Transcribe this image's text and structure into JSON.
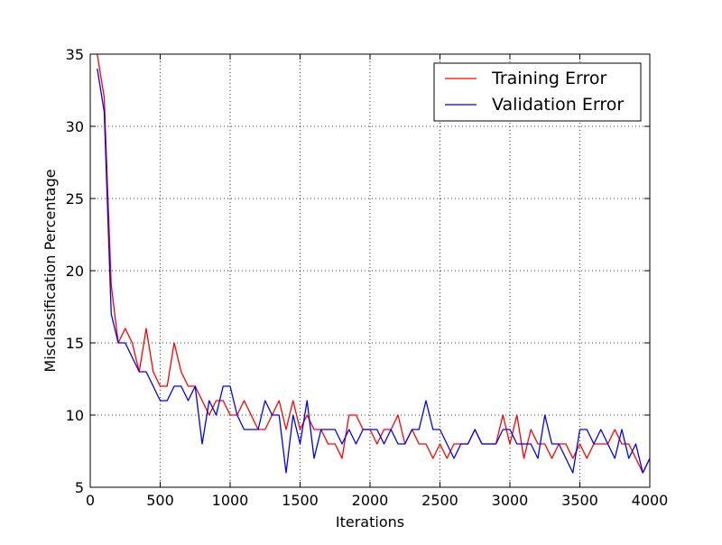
{
  "chart_data": {
    "type": "line",
    "title": "",
    "xlabel": "Iterations",
    "ylabel": "Misclassification Percentage",
    "xlim": [
      0,
      4000
    ],
    "ylim": [
      5,
      35
    ],
    "xticks": [
      "0",
      "500",
      "1000",
      "1500",
      "2000",
      "2500",
      "3000",
      "3500",
      "4000"
    ],
    "yticks": [
      "5",
      "10",
      "15",
      "20",
      "25",
      "30",
      "35"
    ],
    "xtick_values": [
      0,
      500,
      1000,
      1500,
      2000,
      2500,
      3000,
      3500,
      4000
    ],
    "ytick_values": [
      5,
      10,
      15,
      20,
      25,
      30,
      35
    ],
    "grid": true,
    "legend": {
      "position": "top-right",
      "entries": [
        "Training Error",
        "Validation Error"
      ]
    },
    "x": [
      50,
      100,
      150,
      200,
      250,
      300,
      350,
      400,
      450,
      500,
      550,
      600,
      650,
      700,
      750,
      800,
      850,
      900,
      950,
      1000,
      1050,
      1100,
      1150,
      1200,
      1250,
      1300,
      1350,
      1400,
      1450,
      1500,
      1550,
      1600,
      1650,
      1700,
      1750,
      1800,
      1850,
      1900,
      1950,
      2000,
      2050,
      2100,
      2150,
      2200,
      2250,
      2300,
      2350,
      2400,
      2450,
      2500,
      2550,
      2600,
      2650,
      2700,
      2750,
      2800,
      2850,
      2900,
      2950,
      3000,
      3050,
      3100,
      3150,
      3200,
      3250,
      3300,
      3350,
      3400,
      3450,
      3500,
      3550,
      3600,
      3650,
      3700,
      3750,
      3800,
      3850,
      3900,
      3950,
      4000
    ],
    "series": [
      {
        "name": "Training Error",
        "color": "#ff0000",
        "values": [
          35,
          32,
          19,
          15,
          16,
          15,
          13,
          16,
          13,
          12,
          12,
          15,
          13,
          12,
          12,
          11,
          10,
          11,
          11,
          10,
          10,
          11,
          10,
          9,
          9,
          10,
          11,
          9,
          11,
          9,
          10,
          9,
          9,
          8,
          8,
          7,
          10,
          10,
          9,
          9,
          8,
          9,
          9,
          10,
          8,
          9,
          8,
          8,
          7,
          8,
          7,
          8,
          8,
          8,
          9,
          8,
          8,
          8,
          10,
          8,
          10,
          7,
          9,
          8,
          8,
          7,
          8,
          8,
          7,
          8,
          7,
          8,
          8,
          8,
          9,
          8,
          8,
          7,
          6,
          7
        ]
      },
      {
        "name": "Validation Error",
        "color": "#0000ff",
        "values": [
          34,
          31,
          17,
          15,
          15,
          14,
          13,
          13,
          12,
          11,
          11,
          12,
          12,
          11,
          12,
          8,
          11,
          10,
          12,
          12,
          10,
          9,
          9,
          9,
          11,
          10,
          10,
          6,
          10,
          8,
          11,
          7,
          9,
          9,
          9,
          8,
          9,
          8,
          9,
          9,
          9,
          8,
          9,
          8,
          8,
          9,
          9,
          11,
          9,
          9,
          8,
          7,
          8,
          8,
          9,
          8,
          8,
          8,
          9,
          9,
          8,
          8,
          8,
          7,
          10,
          8,
          8,
          7,
          6,
          9,
          9,
          8,
          9,
          8,
          7,
          9,
          7,
          8,
          6,
          7
        ]
      }
    ]
  }
}
